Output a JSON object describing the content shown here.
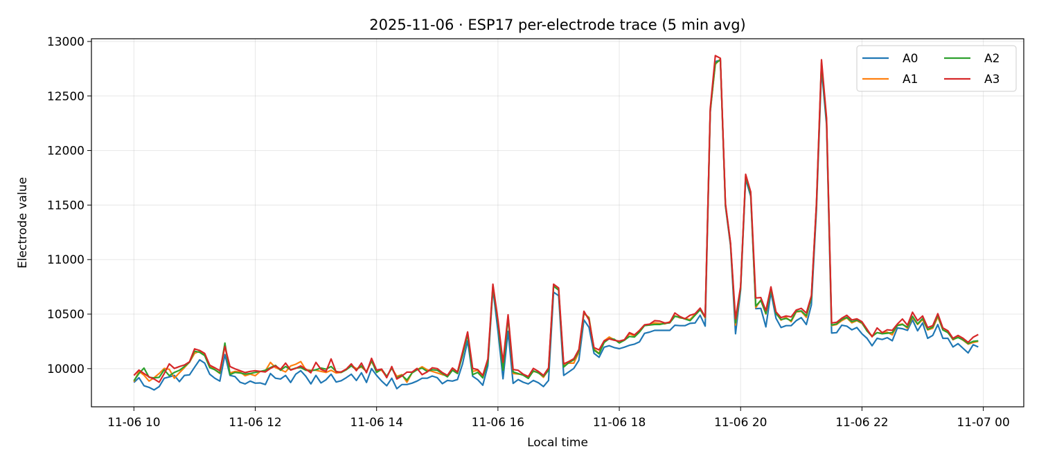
{
  "chart_data": {
    "type": "line",
    "title": "2025-11-06 · ESP17 per-electrode trace (5 min avg)",
    "xlabel": "Local time",
    "ylabel": "Electrode value",
    "x_start": "2025-11-06 10:00",
    "x_interval_minutes": 5,
    "xlim_minutes": [
      -42,
      880
    ],
    "ylim": [
      9650,
      13025
    ],
    "grid": true,
    "legend_position": "top-right",
    "legend_columns": 2,
    "x_ticks": [
      {
        "minutes": 0,
        "label": "11-06 10"
      },
      {
        "minutes": 120,
        "label": "11-06 12"
      },
      {
        "minutes": 240,
        "label": "11-06 14"
      },
      {
        "minutes": 360,
        "label": "11-06 16"
      },
      {
        "minutes": 480,
        "label": "11-06 18"
      },
      {
        "minutes": 600,
        "label": "11-06 20"
      },
      {
        "minutes": 720,
        "label": "11-06 22"
      },
      {
        "minutes": 840,
        "label": "11-07 00"
      }
    ],
    "y_ticks": [
      {
        "value": 10000,
        "label": "10000"
      },
      {
        "value": 10500,
        "label": "10500"
      },
      {
        "value": 11000,
        "label": "11000"
      },
      {
        "value": 11500,
        "label": "11500"
      },
      {
        "value": 12000,
        "label": "12000"
      },
      {
        "value": 12500,
        "label": "12500"
      },
      {
        "value": 13000,
        "label": "13000"
      }
    ],
    "series": [
      {
        "name": "A0",
        "color": "#1f77b4",
        "values": [
          9873,
          9917,
          9843,
          9828,
          9805,
          9835,
          9912,
          9924,
          9938,
          9881,
          9938,
          9943,
          10013,
          10081,
          10051,
          9949,
          9912,
          9886,
          10129,
          9938,
          9927,
          9875,
          9860,
          9886,
          9867,
          9869,
          9854,
          9955,
          9912,
          9905,
          9938,
          9873,
          9949,
          9981,
          9930,
          9860,
          9938,
          9869,
          9898,
          9949,
          9877,
          9889,
          9917,
          9949,
          9892,
          9962,
          9873,
          10000,
          9938,
          9886,
          9843,
          9912,
          9816,
          9854,
          9854,
          9867,
          9886,
          9912,
          9912,
          9932,
          9917,
          9862,
          9892,
          9886,
          9900,
          10044,
          10256,
          9930,
          9898,
          9848,
          10025,
          10733,
          10343,
          9907,
          10343,
          9865,
          9900,
          9875,
          9860,
          9892,
          9870,
          9836,
          9892,
          10701,
          10669,
          9938,
          9970,
          10002,
          10076,
          10447,
          10379,
          10140,
          10104,
          10197,
          10210,
          10193,
          10183,
          10197,
          10214,
          10225,
          10246,
          10324,
          10335,
          10351,
          10351,
          10351,
          10351,
          10398,
          10394,
          10394,
          10415,
          10419,
          10489,
          10390,
          12350,
          12815,
          12830,
          11490,
          11130,
          10320,
          10720,
          11740,
          11580,
          10550,
          10553,
          10383,
          10701,
          10462,
          10377,
          10394,
          10394,
          10440,
          10468,
          10404,
          10585,
          11455,
          12745,
          12236,
          10326,
          10330,
          10398,
          10390,
          10356,
          10377,
          10320,
          10278,
          10210,
          10278,
          10267,
          10284,
          10256,
          10373,
          10366,
          10351,
          10447,
          10347,
          10419,
          10278,
          10305,
          10404,
          10278,
          10278,
          10199,
          10229,
          10186,
          10144,
          10220,
          10199
        ]
      },
      {
        "name": "A1",
        "color": "#ff7f0e",
        "values": [
          9880,
          9975,
          9940,
          9886,
          9917,
          9955,
          10002,
          9994,
          9912,
          9962,
          10010,
          10060,
          10140,
          10160,
          10130,
          10030,
          9990,
          9955,
          10210,
          9960,
          9975,
          9970,
          9935,
          9950,
          9935,
          9975,
          9980,
          10057,
          10010,
          9990,
          9970,
          10025,
          10040,
          10065,
          9990,
          9985,
          9985,
          9975,
          9965,
          9985,
          9960,
          9965,
          9990,
          10030,
          10000,
          10015,
          9975,
          10065,
          9980,
          9985,
          9925,
          10005,
          9930,
          9945,
          9875,
          9960,
          9990,
          10017,
          9990,
          9975,
          9960,
          9945,
          9935,
          9990,
          9960,
          10130,
          10320,
          9975,
          9985,
          9925,
          10070,
          10760,
          10430,
          10010,
          10480,
          9955,
          9950,
          9945,
          9920,
          9975,
          9965,
          9920,
          9990,
          10760,
          10720,
          10030,
          10050,
          10050,
          10150,
          10505,
          10470,
          10180,
          10140,
          10255,
          10290,
          10265,
          10245,
          10260,
          10320,
          10300,
          10345,
          10400,
          10400,
          10420,
          10415,
          10410,
          10430,
          10485,
          10465,
          10460,
          10450,
          10500,
          10545,
          10465,
          12360,
          12790,
          12840,
          11505,
          11150,
          10400,
          10745,
          11770,
          11610,
          10560,
          10630,
          10500,
          10735,
          10510,
          10445,
          10470,
          10430,
          10520,
          10525,
          10470,
          10655,
          11505,
          12810,
          12280,
          10395,
          10405,
          10440,
          10465,
          10420,
          10440,
          10415,
          10350,
          10300,
          10330,
          10325,
          10335,
          10310,
          10400,
          10410,
          10370,
          10470,
          10405,
          10450,
          10355,
          10370,
          10475,
          10355,
          10335,
          10265,
          10290,
          10260,
          10225,
          10240,
          10250
        ]
      },
      {
        "name": "A2",
        "color": "#2ca02c",
        "values": [
          9890,
          9955,
          10005,
          9920,
          9915,
          9920,
          9990,
          9935,
          9965,
          9985,
          10020,
          10060,
          10160,
          10150,
          10120,
          10010,
          9990,
          9960,
          10235,
          9945,
          9965,
          9960,
          9950,
          9955,
          9965,
          9975,
          9985,
          10010,
          10030,
          9985,
          10020,
          9990,
          10005,
          10010,
          9985,
          9980,
          9990,
          10005,
          9995,
          10020,
          9975,
          9965,
          9990,
          10025,
          9990,
          10025,
          9970,
          10075,
          9965,
          9995,
          9930,
          10005,
          9915,
          9940,
          9895,
          9960,
          9990,
          10005,
          9975,
          9990,
          9985,
          9955,
          9925,
          9985,
          9955,
          10120,
          10315,
          9945,
          9965,
          9915,
          10060,
          10755,
          10420,
          9985,
          10470,
          9970,
          9955,
          9940,
          9910,
          9980,
          9960,
          9930,
          9985,
          10755,
          10720,
          10015,
          10055,
          10080,
          10160,
          10515,
          10460,
          10170,
          10135,
          10240,
          10275,
          10270,
          10235,
          10260,
          10295,
          10290,
          10335,
          10395,
          10400,
          10405,
          10405,
          10415,
          10420,
          10480,
          10470,
          10455,
          10440,
          10490,
          10540,
          10470,
          12370,
          12800,
          12830,
          11500,
          11145,
          10420,
          10740,
          11765,
          11600,
          10575,
          10625,
          10505,
          10730,
          10505,
          10450,
          10460,
          10440,
          10525,
          10530,
          10485,
          10650,
          11500,
          12800,
          12270,
          10400,
          10410,
          10450,
          10470,
          10430,
          10445,
          10420,
          10345,
          10295,
          10330,
          10320,
          10325,
          10330,
          10395,
          10405,
          10380,
          10480,
          10410,
          10460,
          10360,
          10380,
          10490,
          10355,
          10330,
          10270,
          10285,
          10265,
          10230,
          10250,
          10255
        ]
      },
      {
        "name": "A3",
        "color": "#d62728",
        "values": [
          9938,
          9987,
          9955,
          9924,
          9905,
          9875,
          9955,
          10044,
          10002,
          10019,
          10034,
          10063,
          10181,
          10167,
          10140,
          10032,
          10008,
          9981,
          10203,
          10019,
          9998,
          9981,
          9964,
          9975,
          9981,
          9975,
          9970,
          10002,
          10025,
          9994,
          10051,
          9987,
          10002,
          10025,
          9996,
          9962,
          10057,
          9994,
          9975,
          10089,
          9970,
          9970,
          9996,
          10044,
          9981,
          10051,
          9962,
          10095,
          9987,
          9996,
          9917,
          10019,
          9905,
          9932,
          9968,
          9968,
          10002,
          9945,
          9970,
          10008,
          10000,
          9964,
          9938,
          10006,
          9970,
          10152,
          10337,
          10002,
          9991,
          9938,
          10089,
          10775,
          10447,
          10057,
          10494,
          9991,
          9985,
          9949,
          9928,
          10002,
          9975,
          9938,
          10006,
          10775,
          10739,
          10044,
          10065,
          10091,
          10176,
          10527,
          10447,
          10193,
          10172,
          10256,
          10273,
          10260,
          10252,
          10265,
          10330,
          10309,
          10351,
          10402,
          10408,
          10440,
          10436,
          10419,
          10425,
          10510,
          10478,
          10457,
          10489,
          10504,
          10555,
          10475,
          12386,
          12870,
          12846,
          11516,
          11156,
          10457,
          10754,
          11782,
          11622,
          10648,
          10652,
          10532,
          10750,
          10521,
          10468,
          10483,
          10474,
          10537,
          10553,
          10510,
          10669,
          11516,
          12833,
          12300,
          10419,
          10425,
          10462,
          10489,
          10447,
          10457,
          10430,
          10362,
          10292,
          10373,
          10330,
          10356,
          10351,
          10409,
          10455,
          10398,
          10517,
          10440,
          10483,
          10377,
          10394,
          10504,
          10373,
          10347,
          10278,
          10305,
          10278,
          10241,
          10288,
          10313
        ]
      }
    ]
  }
}
